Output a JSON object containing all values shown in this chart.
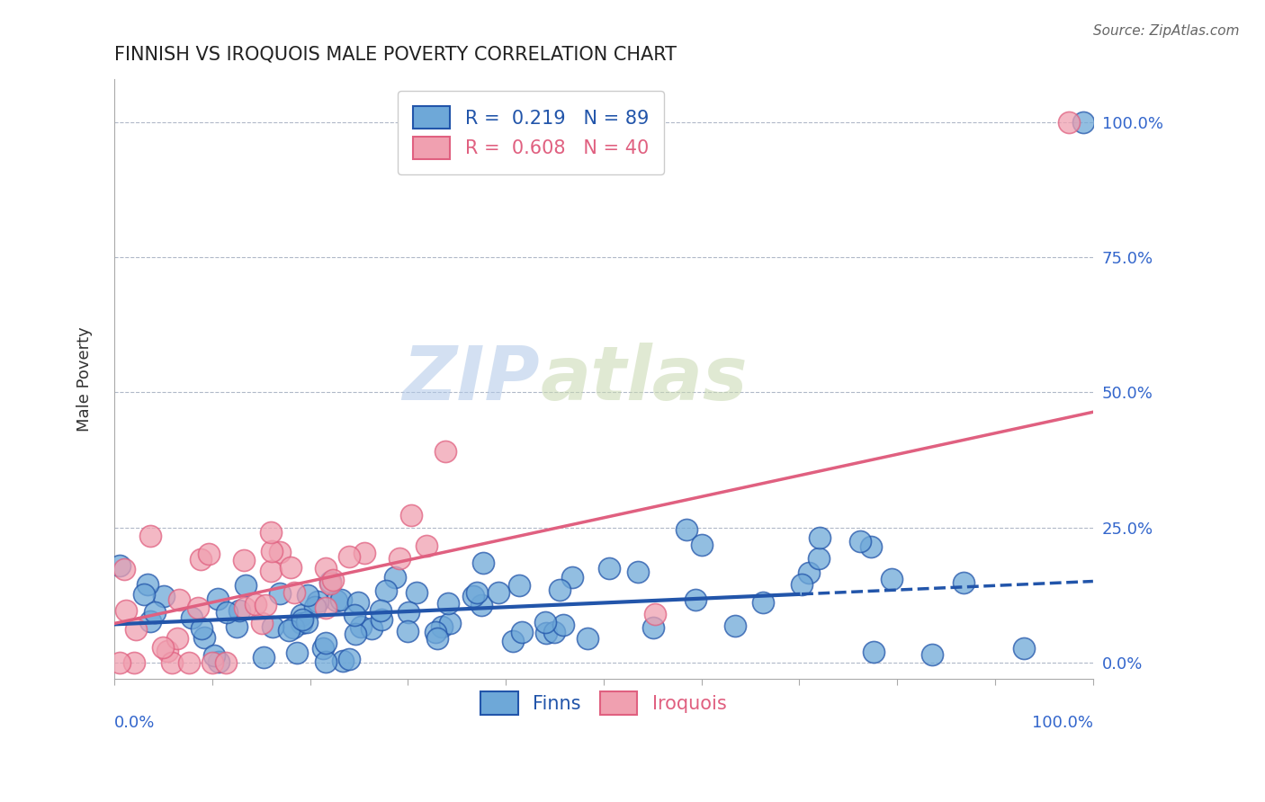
{
  "title": "FINNISH VS IROQUOIS MALE POVERTY CORRELATION CHART",
  "source_text": "Source: ZipAtlas.com",
  "ylabel": "Male Poverty",
  "legend_entry1": "R =  0.219   N = 89",
  "legend_entry2": "R =  0.608   N = 40",
  "legend_label1": "Finns",
  "legend_label2": "Iroquois",
  "blue_color": "#6ea8d8",
  "pink_color": "#f0a0b0",
  "blue_line_color": "#2255aa",
  "pink_line_color": "#e06080",
  "watermark_zip": "ZIP",
  "watermark_atlas": "atlas",
  "finns_R": 0.219,
  "finns_N": 89,
  "iroquois_R": 0.608,
  "iroquois_N": 40
}
